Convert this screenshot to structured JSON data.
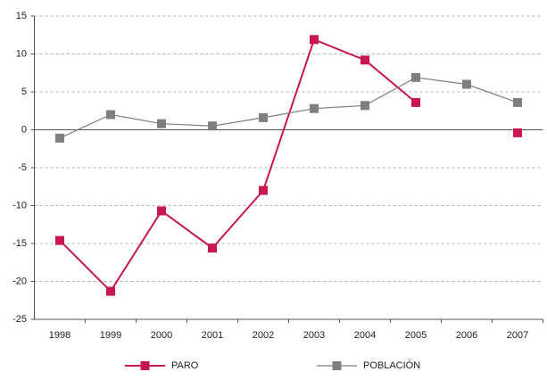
{
  "chart_data": {
    "type": "line",
    "categories": [
      "1998",
      "1999",
      "2000",
      "2001",
      "2002",
      "2003",
      "2004",
      "2005",
      "2006",
      "2007"
    ],
    "series": [
      {
        "name": "PARO",
        "color": "#c8174f",
        "values": [
          -14.6,
          -21.3,
          -10.7,
          -15.6,
          -8.0,
          11.9,
          9.2,
          3.6,
          null,
          -0.4
        ]
      },
      {
        "name": "POBLACIÓN",
        "color": "#7f7f7f",
        "values": [
          -1.1,
          2.0,
          0.8,
          0.5,
          1.6,
          2.8,
          3.2,
          6.9,
          6.0,
          3.6
        ]
      }
    ],
    "ylim": [
      -25,
      15
    ],
    "yticks": [
      -25,
      -20,
      -15,
      -10,
      -5,
      0,
      5,
      10,
      15
    ],
    "grid": true
  }
}
